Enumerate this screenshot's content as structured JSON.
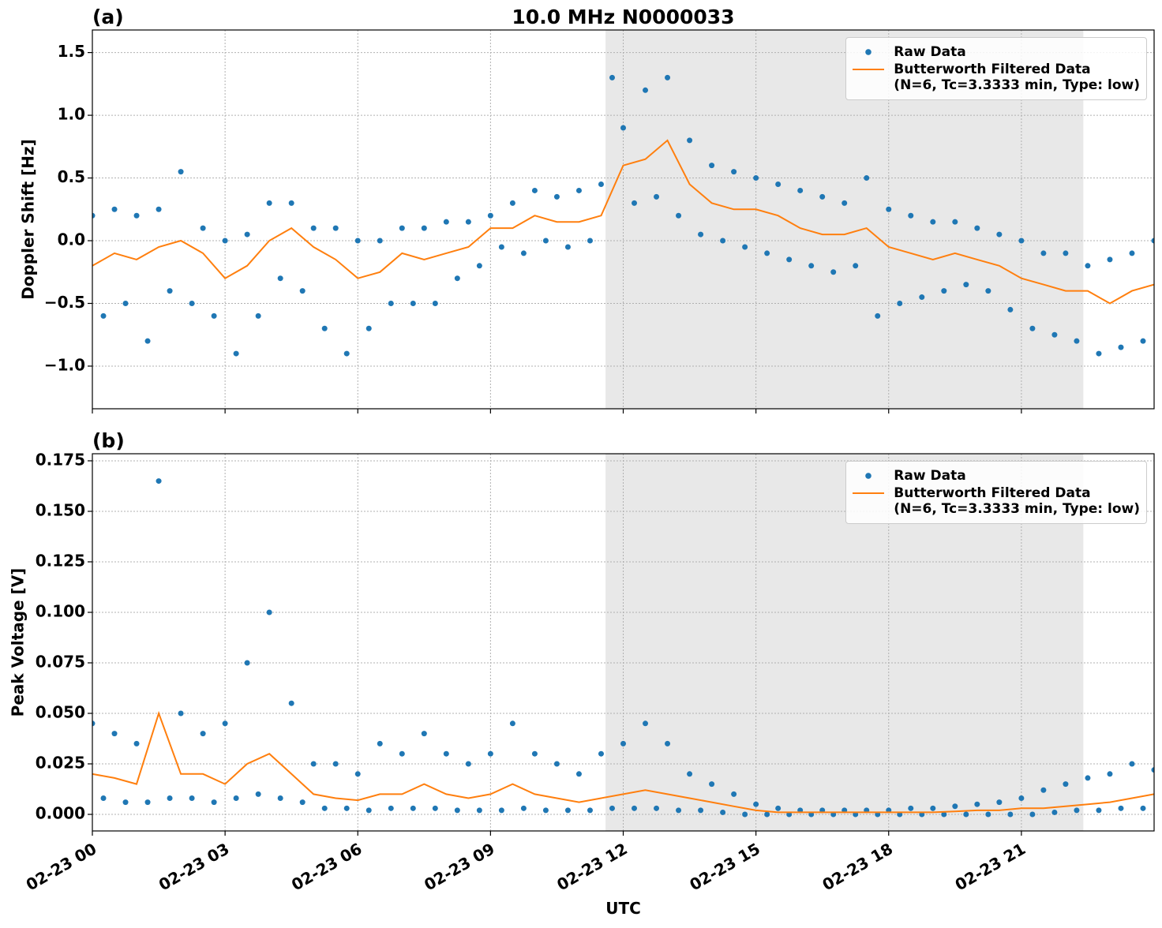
{
  "chart_data": [
    {
      "type": "line",
      "title": "10.0 MHz N0000033",
      "panel_label": "(a)",
      "ylabel": "Doppler Shift [Hz]",
      "xlim": [
        0,
        24
      ],
      "ylim": [
        -1.34,
        1.68
      ],
      "yticks": [
        {
          "value": -1.0,
          "label": "−1.0"
        },
        {
          "value": -0.5,
          "label": "−0.5"
        },
        {
          "value": 0.0,
          "label": "0.0"
        },
        {
          "value": 0.5,
          "label": "0.5"
        },
        {
          "value": 1.0,
          "label": "1.0"
        },
        {
          "value": 1.5,
          "label": "1.5"
        }
      ],
      "grid": true,
      "legend": "upper right",
      "shaded_xrange": [
        11.6,
        22.4
      ],
      "series": [
        {
          "name": "Raw Data",
          "type": "scatter",
          "color": "#1f77b4",
          "x": [
            0,
            0.25,
            0.5,
            0.75,
            1,
            1.25,
            1.5,
            1.75,
            2,
            2.25,
            2.5,
            2.75,
            3,
            3.25,
            3.5,
            3.75,
            4,
            4.25,
            4.5,
            4.75,
            5,
            5.25,
            5.5,
            5.75,
            6,
            6.25,
            6.5,
            6.75,
            7,
            7.25,
            7.5,
            7.75,
            8,
            8.25,
            8.5,
            8.75,
            9,
            9.25,
            9.5,
            9.75,
            10,
            10.25,
            10.5,
            10.75,
            11,
            11.25,
            11.5,
            11.75,
            12,
            12.25,
            12.5,
            12.75,
            13,
            13.25,
            13.5,
            13.75,
            14,
            14.25,
            14.5,
            14.75,
            15,
            15.25,
            15.5,
            15.75,
            16,
            16.25,
            16.5,
            16.75,
            17,
            17.25,
            17.5,
            17.75,
            18,
            18.25,
            18.5,
            18.75,
            19,
            19.25,
            19.5,
            19.75,
            20,
            20.25,
            20.5,
            20.75,
            21,
            21.25,
            21.5,
            21.75,
            22,
            22.25,
            22.5,
            22.75,
            23,
            23.25,
            23.5,
            23.75,
            24
          ],
          "values": [
            0.2,
            -0.6,
            0.25,
            -0.5,
            0.2,
            -0.8,
            0.25,
            -0.4,
            0.55,
            -0.5,
            0.1,
            -0.6,
            0.0,
            -0.9,
            0.05,
            -0.6,
            0.3,
            -0.3,
            0.3,
            -0.4,
            0.1,
            -0.7,
            0.1,
            -0.9,
            0.0,
            -0.7,
            0.0,
            -0.5,
            0.1,
            -0.5,
            0.1,
            -0.5,
            0.15,
            -0.3,
            0.15,
            -0.2,
            0.2,
            -0.05,
            0.3,
            -0.1,
            0.4,
            0.0,
            0.35,
            -0.05,
            0.4,
            0.0,
            0.45,
            1.3,
            0.9,
            0.3,
            1.2,
            0.35,
            1.3,
            0.2,
            0.8,
            0.05,
            0.6,
            0.0,
            0.55,
            -0.05,
            0.5,
            -0.1,
            0.45,
            -0.15,
            0.4,
            -0.2,
            0.35,
            -0.25,
            0.3,
            -0.2,
            0.5,
            -0.6,
            0.25,
            -0.5,
            0.2,
            -0.45,
            0.15,
            -0.4,
            0.15,
            -0.35,
            0.1,
            -0.4,
            0.05,
            -0.55,
            0.0,
            -0.7,
            -0.1,
            -0.75,
            -0.1,
            -0.8,
            -0.2,
            -0.9,
            -0.15,
            -0.85,
            -0.1,
            -0.8,
            0.0
          ]
        },
        {
          "name": "Butterworth Filtered Data\n(N=6, Tc=3.3333 min, Type: low)",
          "type": "line",
          "color": "#ff7f0e",
          "x": [
            0,
            0.5,
            1,
            1.5,
            2,
            2.5,
            3,
            3.5,
            4,
            4.5,
            5,
            5.5,
            6,
            6.5,
            7,
            7.5,
            8,
            8.5,
            9,
            9.5,
            10,
            10.5,
            11,
            11.5,
            12,
            12.5,
            13,
            13.5,
            14,
            14.5,
            15,
            15.5,
            16,
            16.5,
            17,
            17.5,
            18,
            18.5,
            19,
            19.5,
            20,
            20.5,
            21,
            21.5,
            22,
            22.5,
            23,
            23.5,
            24
          ],
          "values": [
            -0.2,
            -0.1,
            -0.15,
            -0.05,
            0.0,
            -0.1,
            -0.3,
            -0.2,
            0.0,
            0.1,
            -0.05,
            -0.15,
            -0.3,
            -0.25,
            -0.1,
            -0.15,
            -0.1,
            -0.05,
            0.1,
            0.1,
            0.2,
            0.15,
            0.15,
            0.2,
            0.6,
            0.65,
            0.8,
            0.45,
            0.3,
            0.25,
            0.25,
            0.2,
            0.1,
            0.05,
            0.05,
            0.1,
            -0.05,
            -0.1,
            -0.15,
            -0.1,
            -0.15,
            -0.2,
            -0.3,
            -0.35,
            -0.4,
            -0.4,
            -0.5,
            -0.4,
            -0.35
          ]
        }
      ]
    },
    {
      "type": "line",
      "panel_label": "(b)",
      "ylabel": "Peak Voltage [V]",
      "xlabel": "UTC",
      "xlim": [
        0,
        24
      ],
      "ylim": [
        -0.0082,
        0.1785
      ],
      "xticks": [
        {
          "value": 0,
          "label": "02-23 00"
        },
        {
          "value": 3,
          "label": "02-23 03"
        },
        {
          "value": 6,
          "label": "02-23 06"
        },
        {
          "value": 9,
          "label": "02-23 09"
        },
        {
          "value": 12,
          "label": "02-23 12"
        },
        {
          "value": 15,
          "label": "02-23 15"
        },
        {
          "value": 18,
          "label": "02-23 18"
        },
        {
          "value": 21,
          "label": "02-23 21"
        }
      ],
      "yticks": [
        {
          "value": 0,
          "label": "0.000"
        },
        {
          "value": 0.025,
          "label": "0.025"
        },
        {
          "value": 0.05,
          "label": "0.050"
        },
        {
          "value": 0.075,
          "label": "0.075"
        },
        {
          "value": 0.1,
          "label": "0.100"
        },
        {
          "value": 0.125,
          "label": "0.125"
        },
        {
          "value": 0.15,
          "label": "0.150"
        },
        {
          "value": 0.175,
          "label": "0.175"
        }
      ],
      "grid": true,
      "legend": "upper right",
      "shaded_xrange": [
        11.6,
        22.4
      ],
      "series": [
        {
          "name": "Raw Data",
          "type": "scatter",
          "color": "#1f77b4",
          "x": [
            0,
            0.25,
            0.5,
            0.75,
            1,
            1.25,
            1.5,
            1.75,
            2,
            2.25,
            2.5,
            2.75,
            3,
            3.25,
            3.5,
            3.75,
            4,
            4.25,
            4.5,
            4.75,
            5,
            5.25,
            5.5,
            5.75,
            6,
            6.25,
            6.5,
            6.75,
            7,
            7.25,
            7.5,
            7.75,
            8,
            8.25,
            8.5,
            8.75,
            9,
            9.25,
            9.5,
            9.75,
            10,
            10.25,
            10.5,
            10.75,
            11,
            11.25,
            11.5,
            11.75,
            12,
            12.25,
            12.5,
            12.75,
            13,
            13.25,
            13.5,
            13.75,
            14,
            14.25,
            14.5,
            14.75,
            15,
            15.25,
            15.5,
            15.75,
            16,
            16.25,
            16.5,
            16.75,
            17,
            17.25,
            17.5,
            17.75,
            18,
            18.25,
            18.5,
            18.75,
            19,
            19.25,
            19.5,
            19.75,
            20,
            20.25,
            20.5,
            20.75,
            21,
            21.25,
            21.5,
            21.75,
            22,
            22.25,
            22.5,
            22.75,
            23,
            23.25,
            23.5,
            23.75,
            24
          ],
          "values": [
            0.045,
            0.008,
            0.04,
            0.006,
            0.035,
            0.006,
            0.165,
            0.008,
            0.05,
            0.008,
            0.04,
            0.006,
            0.045,
            0.008,
            0.075,
            0.01,
            0.1,
            0.008,
            0.055,
            0.006,
            0.025,
            0.003,
            0.025,
            0.003,
            0.02,
            0.002,
            0.035,
            0.003,
            0.03,
            0.003,
            0.04,
            0.003,
            0.03,
            0.002,
            0.025,
            0.002,
            0.03,
            0.002,
            0.045,
            0.003,
            0.03,
            0.002,
            0.025,
            0.002,
            0.02,
            0.002,
            0.03,
            0.003,
            0.035,
            0.003,
            0.045,
            0.003,
            0.035,
            0.002,
            0.02,
            0.002,
            0.015,
            0.001,
            0.01,
            0.0,
            0.005,
            0.0,
            0.003,
            0.0,
            0.002,
            0.0,
            0.002,
            0.0,
            0.002,
            0.0,
            0.002,
            0.0,
            0.002,
            0.0,
            0.003,
            0.0,
            0.003,
            0.0,
            0.004,
            0.0,
            0.005,
            0.0,
            0.006,
            0.0,
            0.008,
            0.0,
            0.012,
            0.001,
            0.015,
            0.002,
            0.018,
            0.002,
            0.02,
            0.003,
            0.025,
            0.003,
            0.022
          ]
        },
        {
          "name": "Butterworth Filtered Data\n(N=6, Tc=3.3333 min, Type: low)",
          "type": "line",
          "color": "#ff7f0e",
          "x": [
            0,
            0.5,
            1,
            1.5,
            2,
            2.5,
            3,
            3.5,
            4,
            4.5,
            5,
            5.5,
            6,
            6.5,
            7,
            7.5,
            8,
            8.5,
            9,
            9.5,
            10,
            10.5,
            11,
            11.5,
            12,
            12.5,
            13,
            13.5,
            14,
            14.5,
            15,
            15.5,
            16,
            16.5,
            17,
            17.5,
            18,
            18.5,
            19,
            19.5,
            20,
            20.5,
            21,
            21.5,
            22,
            22.5,
            23,
            23.5,
            24
          ],
          "values": [
            0.02,
            0.018,
            0.015,
            0.05,
            0.02,
            0.02,
            0.015,
            0.025,
            0.03,
            0.02,
            0.01,
            0.008,
            0.007,
            0.01,
            0.01,
            0.015,
            0.01,
            0.008,
            0.01,
            0.015,
            0.01,
            0.008,
            0.006,
            0.008,
            0.01,
            0.012,
            0.01,
            0.008,
            0.006,
            0.004,
            0.002,
            0.001,
            0.001,
            0.001,
            0.001,
            0.001,
            0.001,
            0.001,
            0.001,
            0.0015,
            0.002,
            0.002,
            0.003,
            0.003,
            0.004,
            0.005,
            0.006,
            0.008,
            0.01
          ]
        }
      ]
    }
  ]
}
